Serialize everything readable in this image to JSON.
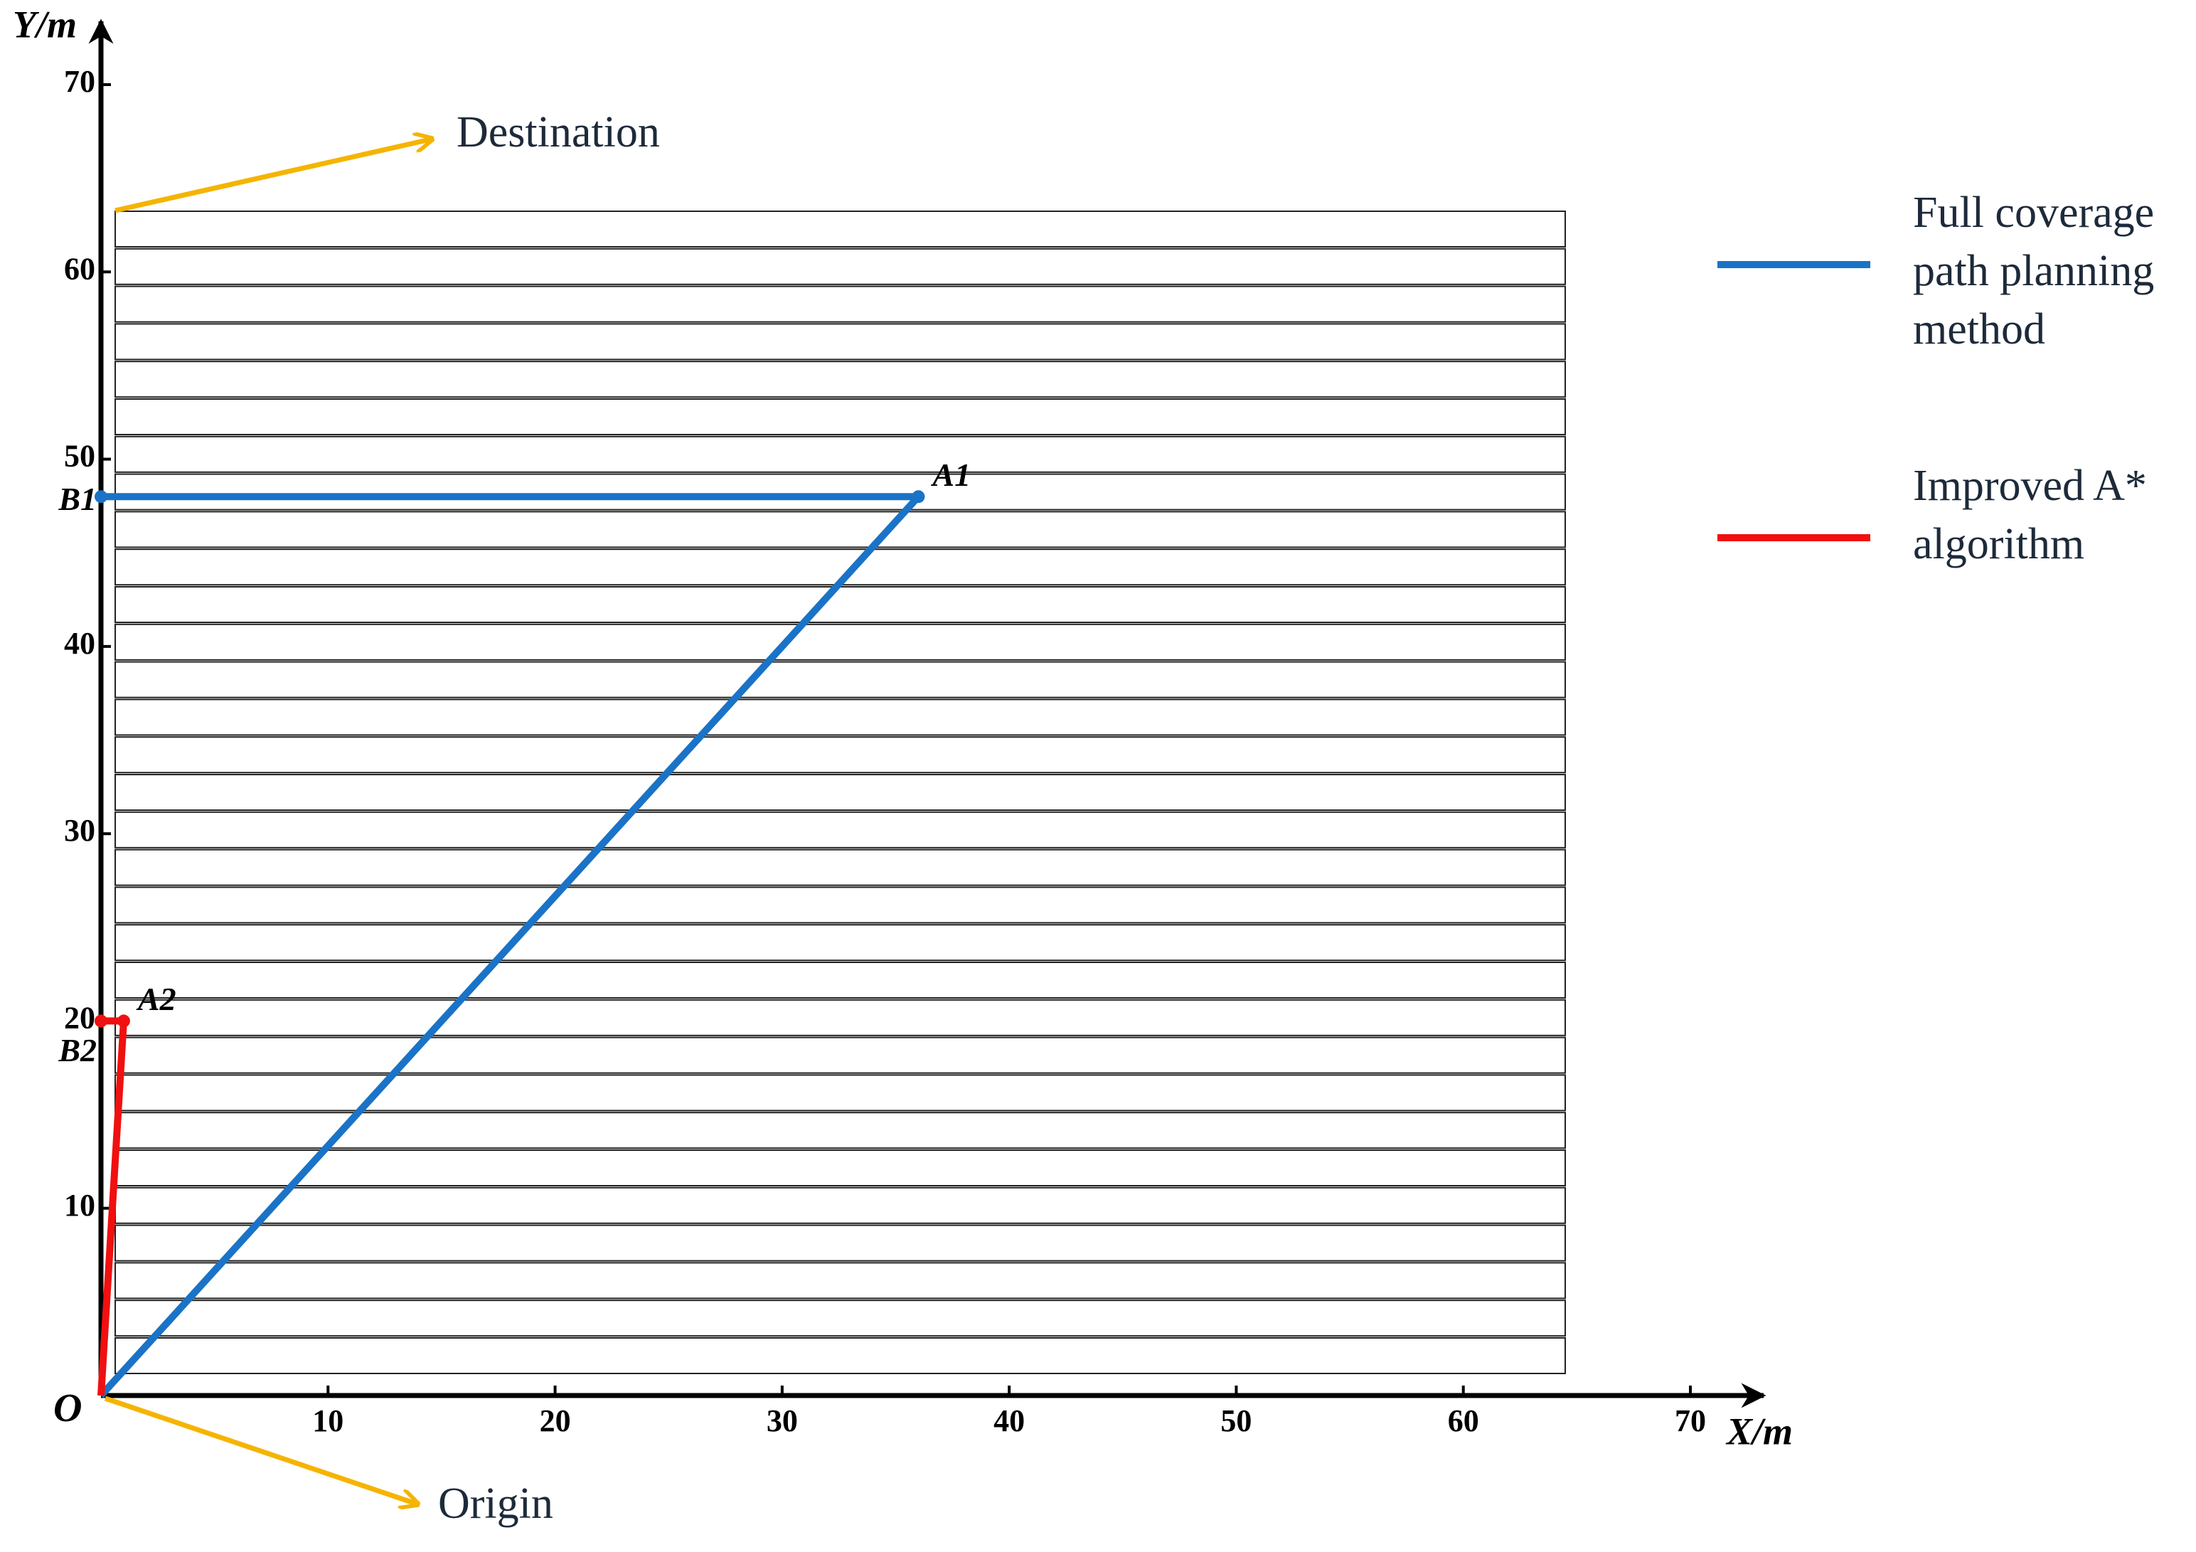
{
  "chart_data": {
    "type": "line",
    "x_label": "X/m",
    "y_label": "Y/m",
    "origin_label": "O",
    "xlim": [
      0,
      70
    ],
    "ylim": [
      0,
      70
    ],
    "xticks": [
      10,
      20,
      30,
      40,
      50,
      60,
      70
    ],
    "yticks": [
      10,
      20,
      30,
      40,
      50,
      60,
      70
    ],
    "annotations": [
      "Destination",
      "Origin"
    ],
    "series": [
      {
        "name": "Full coverage path planning method",
        "color": "#1a73c6",
        "x": [
          0,
          36,
          0
        ],
        "values": [
          0,
          48,
          48
        ],
        "point_labels": [
          null,
          "A1",
          "B1"
        ]
      },
      {
        "name": "Improved A* algorithm",
        "color": "#f01010",
        "x": [
          0,
          1,
          0
        ],
        "values": [
          0,
          20,
          20
        ],
        "point_labels": [
          null,
          "A2",
          "B2"
        ]
      }
    ]
  }
}
